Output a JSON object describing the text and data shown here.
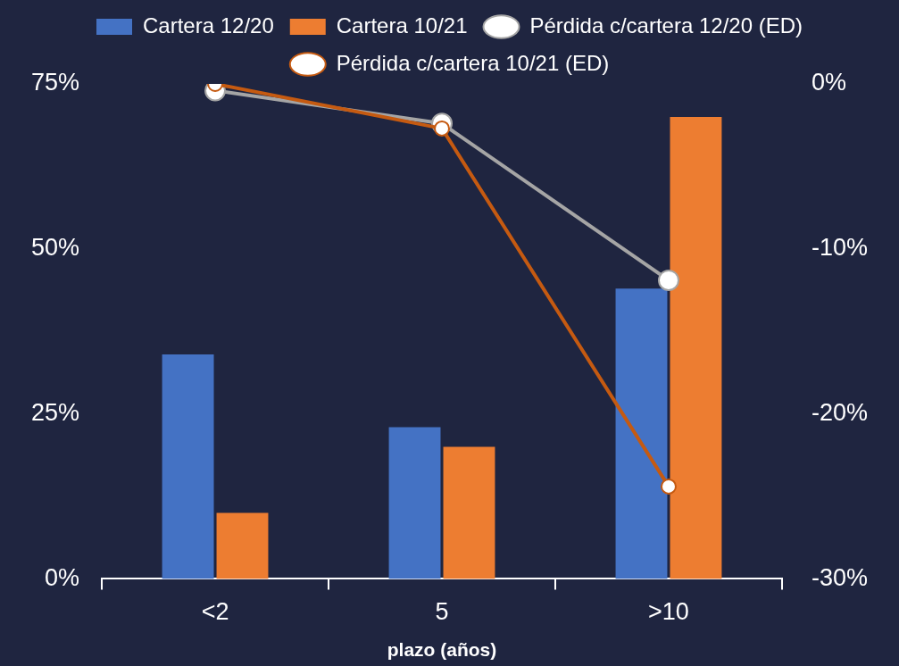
{
  "chart_data": {
    "type": "bar",
    "xlabel": "plazo (años)",
    "categories": [
      "<2",
      "5",
      ">10"
    ],
    "series": [
      {
        "name": "Cartera 12/20",
        "color": "#4472c4",
        "values": [
          34,
          23,
          44
        ]
      },
      {
        "name": "Cartera 10/21",
        "color": "#ed7d31",
        "values": [
          10,
          20,
          70
        ]
      },
      {
        "name": "Pérdida c/cartera 12/20 (ED)",
        "type": "line",
        "axis": "y2",
        "color": "#a5a5a5",
        "values": [
          -0.4,
          -2.4,
          -11.9
        ]
      },
      {
        "name": "Pérdida c/cartera 10/21 (ED)",
        "type": "line",
        "axis": "y2",
        "color": "#c55a11",
        "values": [
          0,
          -2.7,
          -24.4
        ]
      }
    ],
    "ylim": [
      0,
      75
    ],
    "yticks": [
      {
        "value": 0,
        "label": "0%"
      },
      {
        "value": 25,
        "label": "25%"
      },
      {
        "value": 50,
        "label": "50%"
      },
      {
        "value": 75,
        "label": "75%"
      }
    ],
    "y2lim": [
      -30,
      0
    ],
    "y2ticks": [
      {
        "value": -30,
        "label": "-30%"
      },
      {
        "value": -20,
        "label": "-20%"
      },
      {
        "value": -10,
        "label": "-10%"
      },
      {
        "value": 0,
        "label": "0%"
      }
    ],
    "legend": "top",
    "marker": "circle",
    "grid": false
  }
}
